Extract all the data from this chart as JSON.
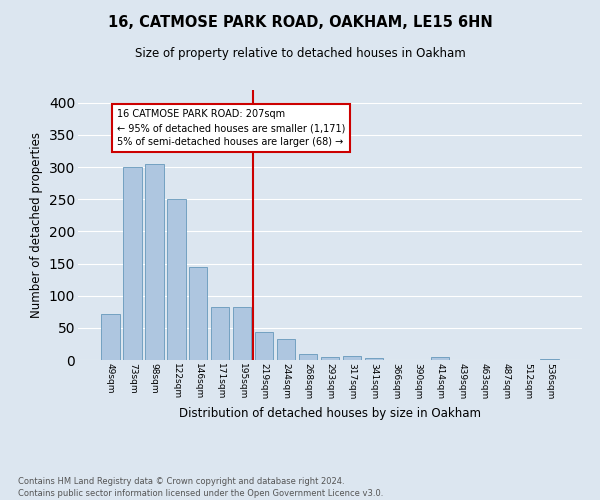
{
  "title1": "16, CATMOSE PARK ROAD, OAKHAM, LE15 6HN",
  "title2": "Size of property relative to detached houses in Oakham",
  "xlabel": "Distribution of detached houses by size in Oakham",
  "ylabel": "Number of detached properties",
  "footer": "Contains HM Land Registry data © Crown copyright and database right 2024.\nContains public sector information licensed under the Open Government Licence v3.0.",
  "categories": [
    "49sqm",
    "73sqm",
    "98sqm",
    "122sqm",
    "146sqm",
    "171sqm",
    "195sqm",
    "219sqm",
    "244sqm",
    "268sqm",
    "293sqm",
    "317sqm",
    "341sqm",
    "366sqm",
    "390sqm",
    "414sqm",
    "439sqm",
    "463sqm",
    "487sqm",
    "512sqm",
    "536sqm"
  ],
  "values": [
    72,
    300,
    305,
    250,
    145,
    83,
    83,
    43,
    32,
    10,
    5,
    6,
    3,
    0,
    0,
    4,
    0,
    0,
    0,
    0,
    2
  ],
  "bar_color": "#aec6e0",
  "bar_edge_color": "#6699bb",
  "bg_color": "#dce6f0",
  "grid_color": "#ffffff",
  "vline_color": "#cc0000",
  "annotation_title": "16 CATMOSE PARK ROAD: 207sqm",
  "annotation_line1": "← 95% of detached houses are smaller (1,171)",
  "annotation_line2": "5% of semi-detached houses are larger (68) →",
  "annotation_box_color": "#cc0000",
  "ylim": [
    0,
    420
  ],
  "yticks": [
    0,
    50,
    100,
    150,
    200,
    250,
    300,
    350,
    400
  ]
}
